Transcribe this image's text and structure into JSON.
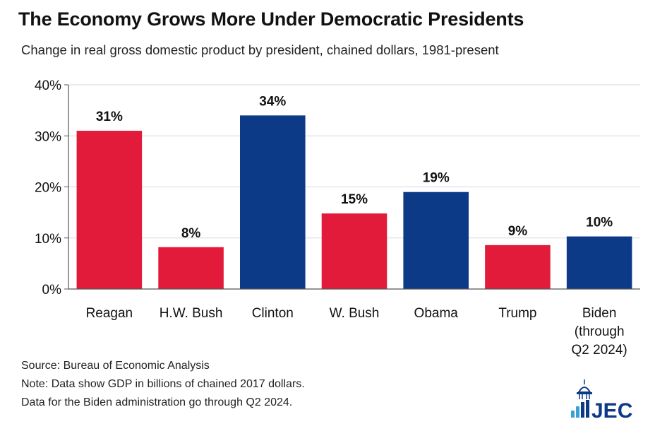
{
  "title": "The Economy Grows More Under Democratic Presidents",
  "subtitle": "Change in real gross domestic product by president, chained dollars, 1981-present",
  "colors": {
    "republican": "#e31b3b",
    "democrat": "#0d3a87",
    "axis": "#555555",
    "grid": "#d9d9d9"
  },
  "chart_data": {
    "type": "bar",
    "categories": [
      "Reagan",
      "H.W. Bush",
      "Clinton",
      "W. Bush",
      "Obama",
      "Trump",
      "Biden (through Q2 2024)"
    ],
    "category_lines": [
      [
        "Reagan"
      ],
      [
        "H.W. Bush"
      ],
      [
        "Clinton"
      ],
      [
        "W. Bush"
      ],
      [
        "Obama"
      ],
      [
        "Trump"
      ],
      [
        "Biden",
        "(through",
        "Q2 2024)"
      ]
    ],
    "values": [
      31,
      8.2,
      34,
      14.8,
      19,
      8.6,
      10.3
    ],
    "data_labels": [
      "31%",
      "8%",
      "34%",
      "15%",
      "19%",
      "9%",
      "10%"
    ],
    "parties": [
      "republican",
      "republican",
      "democrat",
      "republican",
      "democrat",
      "republican",
      "democrat"
    ],
    "ylim": [
      0,
      40
    ],
    "yticks": [
      0,
      10,
      20,
      30,
      40
    ],
    "ytick_labels": [
      "0%",
      "10%",
      "20%",
      "30%",
      "40%"
    ],
    "title": "The Economy Grows More Under Democratic Presidents",
    "xlabel": "",
    "ylabel": ""
  },
  "footer": {
    "source": "Source: Bureau of Economic Analysis",
    "note": "Note: Data show GDP in billions of chained 2017 dollars.",
    "note2": "Data for the Biden administration go through Q2 2024."
  },
  "logo": {
    "text": "JEC"
  }
}
